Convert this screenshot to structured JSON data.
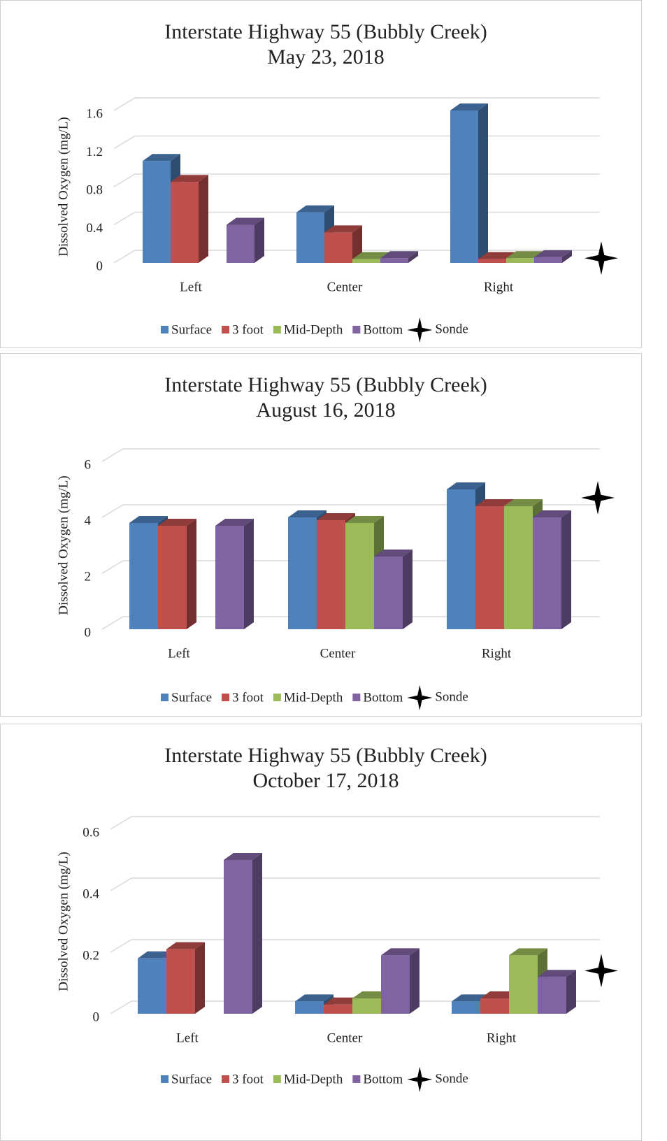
{
  "chart_data": [
    {
      "type": "bar3d",
      "title": "Interstate Highway 55 (Bubbly Creek)",
      "subtitle": "May 23, 2018",
      "y_label": "Dissolved Oxygen (mg/L)",
      "categories": [
        "Left",
        "Center",
        "Right"
      ],
      "series": [
        {
          "name": "Surface",
          "color": "#4f81bd",
          "values": [
            1.07,
            0.53,
            1.6
          ]
        },
        {
          "name": "3 foot",
          "color": "#c0504d",
          "values": [
            0.85,
            0.32,
            0.04
          ]
        },
        {
          "name": "Mid-Depth",
          "color": "#9bbb59",
          "values": [
            null,
            0.04,
            0.05
          ]
        },
        {
          "name": "Bottom",
          "color": "#8064a2",
          "values": [
            0.4,
            0.05,
            0.06
          ]
        }
      ],
      "sonde": {
        "name": "Sonde",
        "value": 0.05
      },
      "ylim": [
        0,
        1.6
      ],
      "yticks": [
        0,
        0.4,
        0.8,
        1.2,
        1.6
      ],
      "grid": true
    },
    {
      "type": "bar3d",
      "title": "Interstate Highway 55 (Bubbly Creek)",
      "subtitle": "August 16, 2018",
      "y_label": "Dissolved Oxygen (mg/L)",
      "categories": [
        "Left",
        "Center",
        "Right"
      ],
      "series": [
        {
          "name": "Surface",
          "color": "#4f81bd",
          "values": [
            3.8,
            4.0,
            5.0
          ]
        },
        {
          "name": "3 foot",
          "color": "#c0504d",
          "values": [
            3.7,
            3.9,
            4.4
          ]
        },
        {
          "name": "Mid-Depth",
          "color": "#9bbb59",
          "values": [
            null,
            3.8,
            4.4
          ]
        },
        {
          "name": "Bottom",
          "color": "#8064a2",
          "values": [
            3.7,
            2.6,
            4.0
          ]
        }
      ],
      "sonde": {
        "name": "Sonde",
        "value": 4.7
      },
      "ylim": [
        0,
        6
      ],
      "yticks": [
        0,
        2,
        4,
        6
      ],
      "grid": true
    },
    {
      "type": "bar3d",
      "title": "Interstate Highway 55 (Bubbly Creek)",
      "subtitle": "October 17, 2018",
      "y_label": "Dissolved Oxygen (mg/L)",
      "categories": [
        "Left",
        "Center",
        "Right"
      ],
      "series": [
        {
          "name": "Surface",
          "color": "#4f81bd",
          "values": [
            0.18,
            0.04,
            0.04
          ]
        },
        {
          "name": "3 foot",
          "color": "#c0504d",
          "values": [
            0.21,
            0.03,
            0.05
          ]
        },
        {
          "name": "Mid-Depth",
          "color": "#9bbb59",
          "values": [
            null,
            0.05,
            0.19
          ]
        },
        {
          "name": "Bottom",
          "color": "#8064a2",
          "values": [
            0.5,
            0.19,
            0.12
          ]
        }
      ],
      "sonde": {
        "name": "Sonde",
        "value": 0.14
      },
      "ylim": [
        0,
        0.6
      ],
      "yticks": [
        0,
        0.2,
        0.4,
        0.6
      ],
      "grid": true
    }
  ]
}
